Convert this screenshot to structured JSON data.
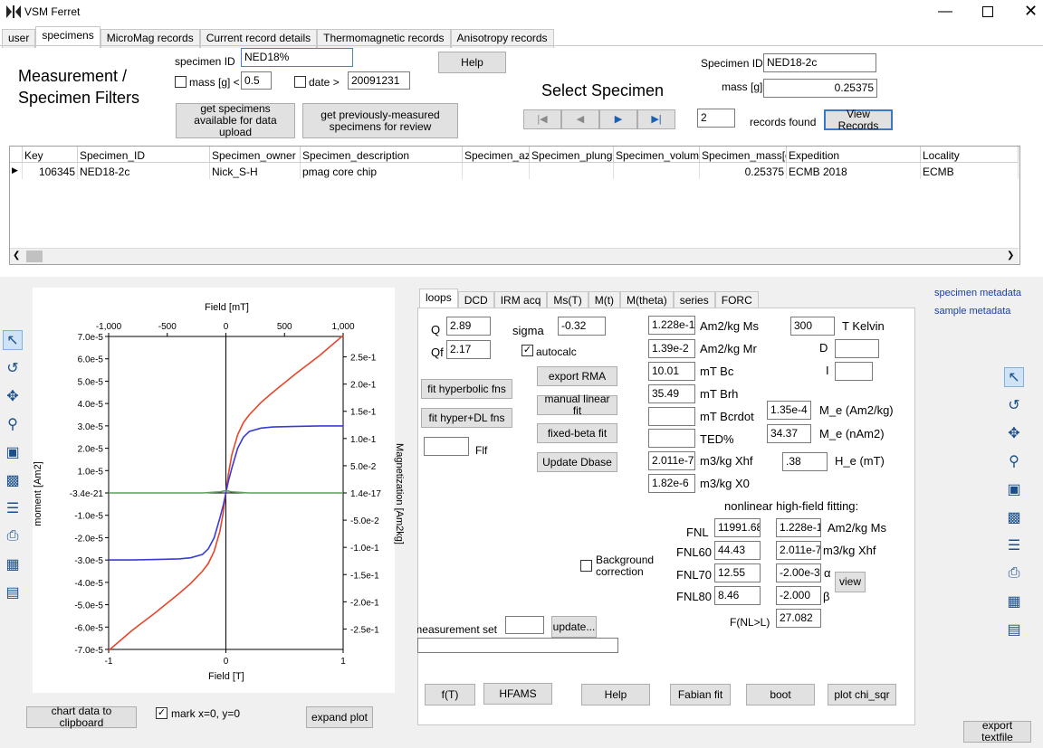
{
  "window": {
    "title": "VSM Ferret"
  },
  "main_tabs": [
    "user",
    "specimens",
    "MicroMag records",
    "Current record details",
    "Thermomagnetic records",
    "Anisotropy records"
  ],
  "filters": {
    "heading": "Measurement / Specimen Filters",
    "specimen_id_label": "specimen ID",
    "specimen_id_value": "NED18%",
    "mass_label": "mass [g] <",
    "mass_value": "0.5",
    "date_label": "date >",
    "date_value": "20091231",
    "help_label": "Help",
    "btn_available": "get specimens available for data upload",
    "btn_previous": "get previously-measured specimens for review"
  },
  "select": {
    "heading": "Select Specimen",
    "specimen_id_label": "Specimen ID",
    "specimen_id_value": "NED18-2c",
    "mass_label": "mass [g]",
    "mass_value": "0.25375",
    "records_count": "2",
    "records_found_label": "records found",
    "view_records_label": "View Records"
  },
  "grid": {
    "columns": [
      "Key",
      "Specimen_ID",
      "Specimen_owner",
      "Specimen_description",
      "Specimen_azi",
      "Specimen_plunge",
      "Specimen_volume",
      "Specimen_mass[g]",
      "Expedition",
      "Locality"
    ],
    "row": [
      "106345",
      "NED18-2c",
      "Nick_S-H",
      "pmag core chip",
      "",
      "",
      "",
      "0.25375",
      "ECMB 2018",
      "ECMB"
    ]
  },
  "chart_data": {
    "type": "line",
    "xlabel_top": "Field [mT]",
    "xlabel_bottom": "Field [T]",
    "ylabel_left": "moment [Am2]",
    "ylabel_right": "Magnetization [Am2kg]",
    "x_ticks_top": [
      "-1,000",
      "-500",
      "0",
      "500",
      "1,000"
    ],
    "x_ticks_bottom": [
      "-1",
      "0",
      "1"
    ],
    "y_ticks_left": [
      "7.0e-5",
      "6.0e-5",
      "5.0e-5",
      "4.0e-5",
      "3.0e-5",
      "2.0e-5",
      "1.0e-5",
      "-3.4e-21",
      "-1.0e-5",
      "-2.0e-5",
      "-3.0e-5",
      "-4.0e-5",
      "-5.0e-5",
      "-6.0e-5",
      "-7.0e-5"
    ],
    "y_ticks_right": [
      "2.5e-1",
      "2.0e-1",
      "1.5e-1",
      "1.0e-1",
      "5.0e-2",
      "1.4e-17",
      "-5.0e-2",
      "-1.0e-1",
      "-1.5e-1",
      "-2.0e-1",
      "-2.5e-1"
    ],
    "xlim": [
      -1,
      1
    ],
    "ylim": [
      -7e-05,
      7e-05
    ],
    "series": [
      {
        "color": "#e8452a",
        "x": [
          -1.0,
          -0.8,
          -0.6,
          -0.4,
          -0.3,
          -0.2,
          -0.15,
          -0.1,
          -0.05,
          -0.02,
          0,
          0.02,
          0.05,
          0.1,
          0.15,
          0.2,
          0.3,
          0.4,
          0.6,
          0.8,
          1.0
        ],
        "y": [
          -7.05e-05,
          -6.15e-05,
          -5.35e-05,
          -4.5e-05,
          -4.05e-05,
          -3.5e-05,
          -3.15e-05,
          -2.6e-05,
          -1.7e-05,
          -8e-06,
          0,
          8e-06,
          1.7e-05,
          2.6e-05,
          3.15e-05,
          3.5e-05,
          4.05e-05,
          4.5e-05,
          5.35e-05,
          6.15e-05,
          7.05e-05
        ]
      },
      {
        "color": "#3a3ad8",
        "x": [
          -1.0,
          -0.8,
          -0.6,
          -0.4,
          -0.3,
          -0.2,
          -0.15,
          -0.1,
          -0.05,
          -0.02,
          0,
          0.02,
          0.05,
          0.1,
          0.15,
          0.2,
          0.3,
          0.4,
          0.6,
          0.8,
          1.0
        ],
        "y": [
          -3e-05,
          -3e-05,
          -2.98e-05,
          -2.95e-05,
          -2.9e-05,
          -2.75e-05,
          -2.5e-05,
          -2e-05,
          -1.1e-05,
          -5e-06,
          0,
          5e-06,
          1.1e-05,
          2e-05,
          2.5e-05,
          2.75e-05,
          2.9e-05,
          2.95e-05,
          2.98e-05,
          3e-05,
          3e-05
        ]
      },
      {
        "color": "#5aa05a",
        "x": [
          -1.0,
          -0.2,
          -0.05,
          0,
          0.05,
          0.2,
          1.0
        ],
        "y": [
          0,
          0,
          5e-07,
          1e-06,
          5e-07,
          0,
          0
        ]
      }
    ]
  },
  "plot_buttons": {
    "clipboard": "chart data to clipboard",
    "mark_label": "mark x=0, y=0",
    "expand": "expand plot"
  },
  "sub_tabs": [
    "loops",
    "DCD",
    "IRM acq",
    "Ms(T)",
    "M(t)",
    "M(theta)",
    "series",
    "FORC"
  ],
  "loops": {
    "Q_label": "Q",
    "Q_value": "2.89",
    "Qf_label": "Qf",
    "Qf_value": "2.17",
    "sigma_label": "sigma",
    "sigma_value": "-0.32",
    "autocalc_label": "autocalc",
    "fit_hyperbolic": "fit hyperbolic fns",
    "fit_hyper_dl": "fit hyper+DL fns",
    "flf_label": "Flf",
    "export_rma": "export RMA",
    "manual_linear": "manual linear fit",
    "fixed_beta": "fixed-beta fit",
    "update_dbase": "Update Dbase",
    "Ms_value": "1.228e-1",
    "Ms_label": "Am2/kg Ms",
    "Mr_value": "1.39e-2",
    "Mr_label": "Am2/kg Mr",
    "Bc_value": "10.01",
    "Bc_label": "mT Bc",
    "Brh_value": "35.49",
    "Brh_label": "mT Brh",
    "Bcrdot_label": "mT Bcrdot",
    "TED_label": "TED%",
    "Xhf_value": "2.011e-7",
    "Xhf_label": "m3/kg Xhf",
    "X0_value": "1.82e-6",
    "X0_label": "m3/kg X0",
    "T_value": "300",
    "T_label": "T Kelvin",
    "D_label": "D",
    "I_label": "I",
    "Me_kg_value": "1.35e-4",
    "Me_kg_label": "M_e (Am2/kg)",
    "Me_nAm_value": "34.37",
    "Me_nAm_label": "M_e (nAm2)",
    "He_value": ".38",
    "He_label": "H_e (mT)",
    "nonlinear_heading": "nonlinear high-field fitting:",
    "FNL_label": "FNL",
    "FNL_value": "11991.68",
    "FNL60_label": "FNL60",
    "FNL60_value": "44.43",
    "FNL70_label": "FNL70",
    "FNL70_value": "12.55",
    "FNL80_label": "FNL80",
    "FNL80_value": "8.46",
    "nl_Ms_value": "1.228e-1",
    "nl_Ms_label": "Am2/kg Ms",
    "nl_Xhf_value": "2.011e-7",
    "nl_Xhf_label": "m3/kg Xhf",
    "alpha_value": "-2.00e-3",
    "alpha_label": "α",
    "beta_value": "-2.000",
    "beta_label": "β",
    "view_label": "view",
    "fnl_gt_l_label": "F(NL>L)",
    "fnl_gt_l_value": "27.082",
    "background_label": "Background correction",
    "measurement_set_label": "measurement set",
    "update_label": "update...",
    "bottom_buttons": [
      "f(T)",
      "HFAMS",
      "Help",
      "Fabian fit",
      "boot",
      "plot chi_sqr"
    ]
  },
  "links": {
    "specimen_metadata": "specimen metadata",
    "sample_metadata": "sample metadata"
  },
  "export_textfile": "export textfile"
}
